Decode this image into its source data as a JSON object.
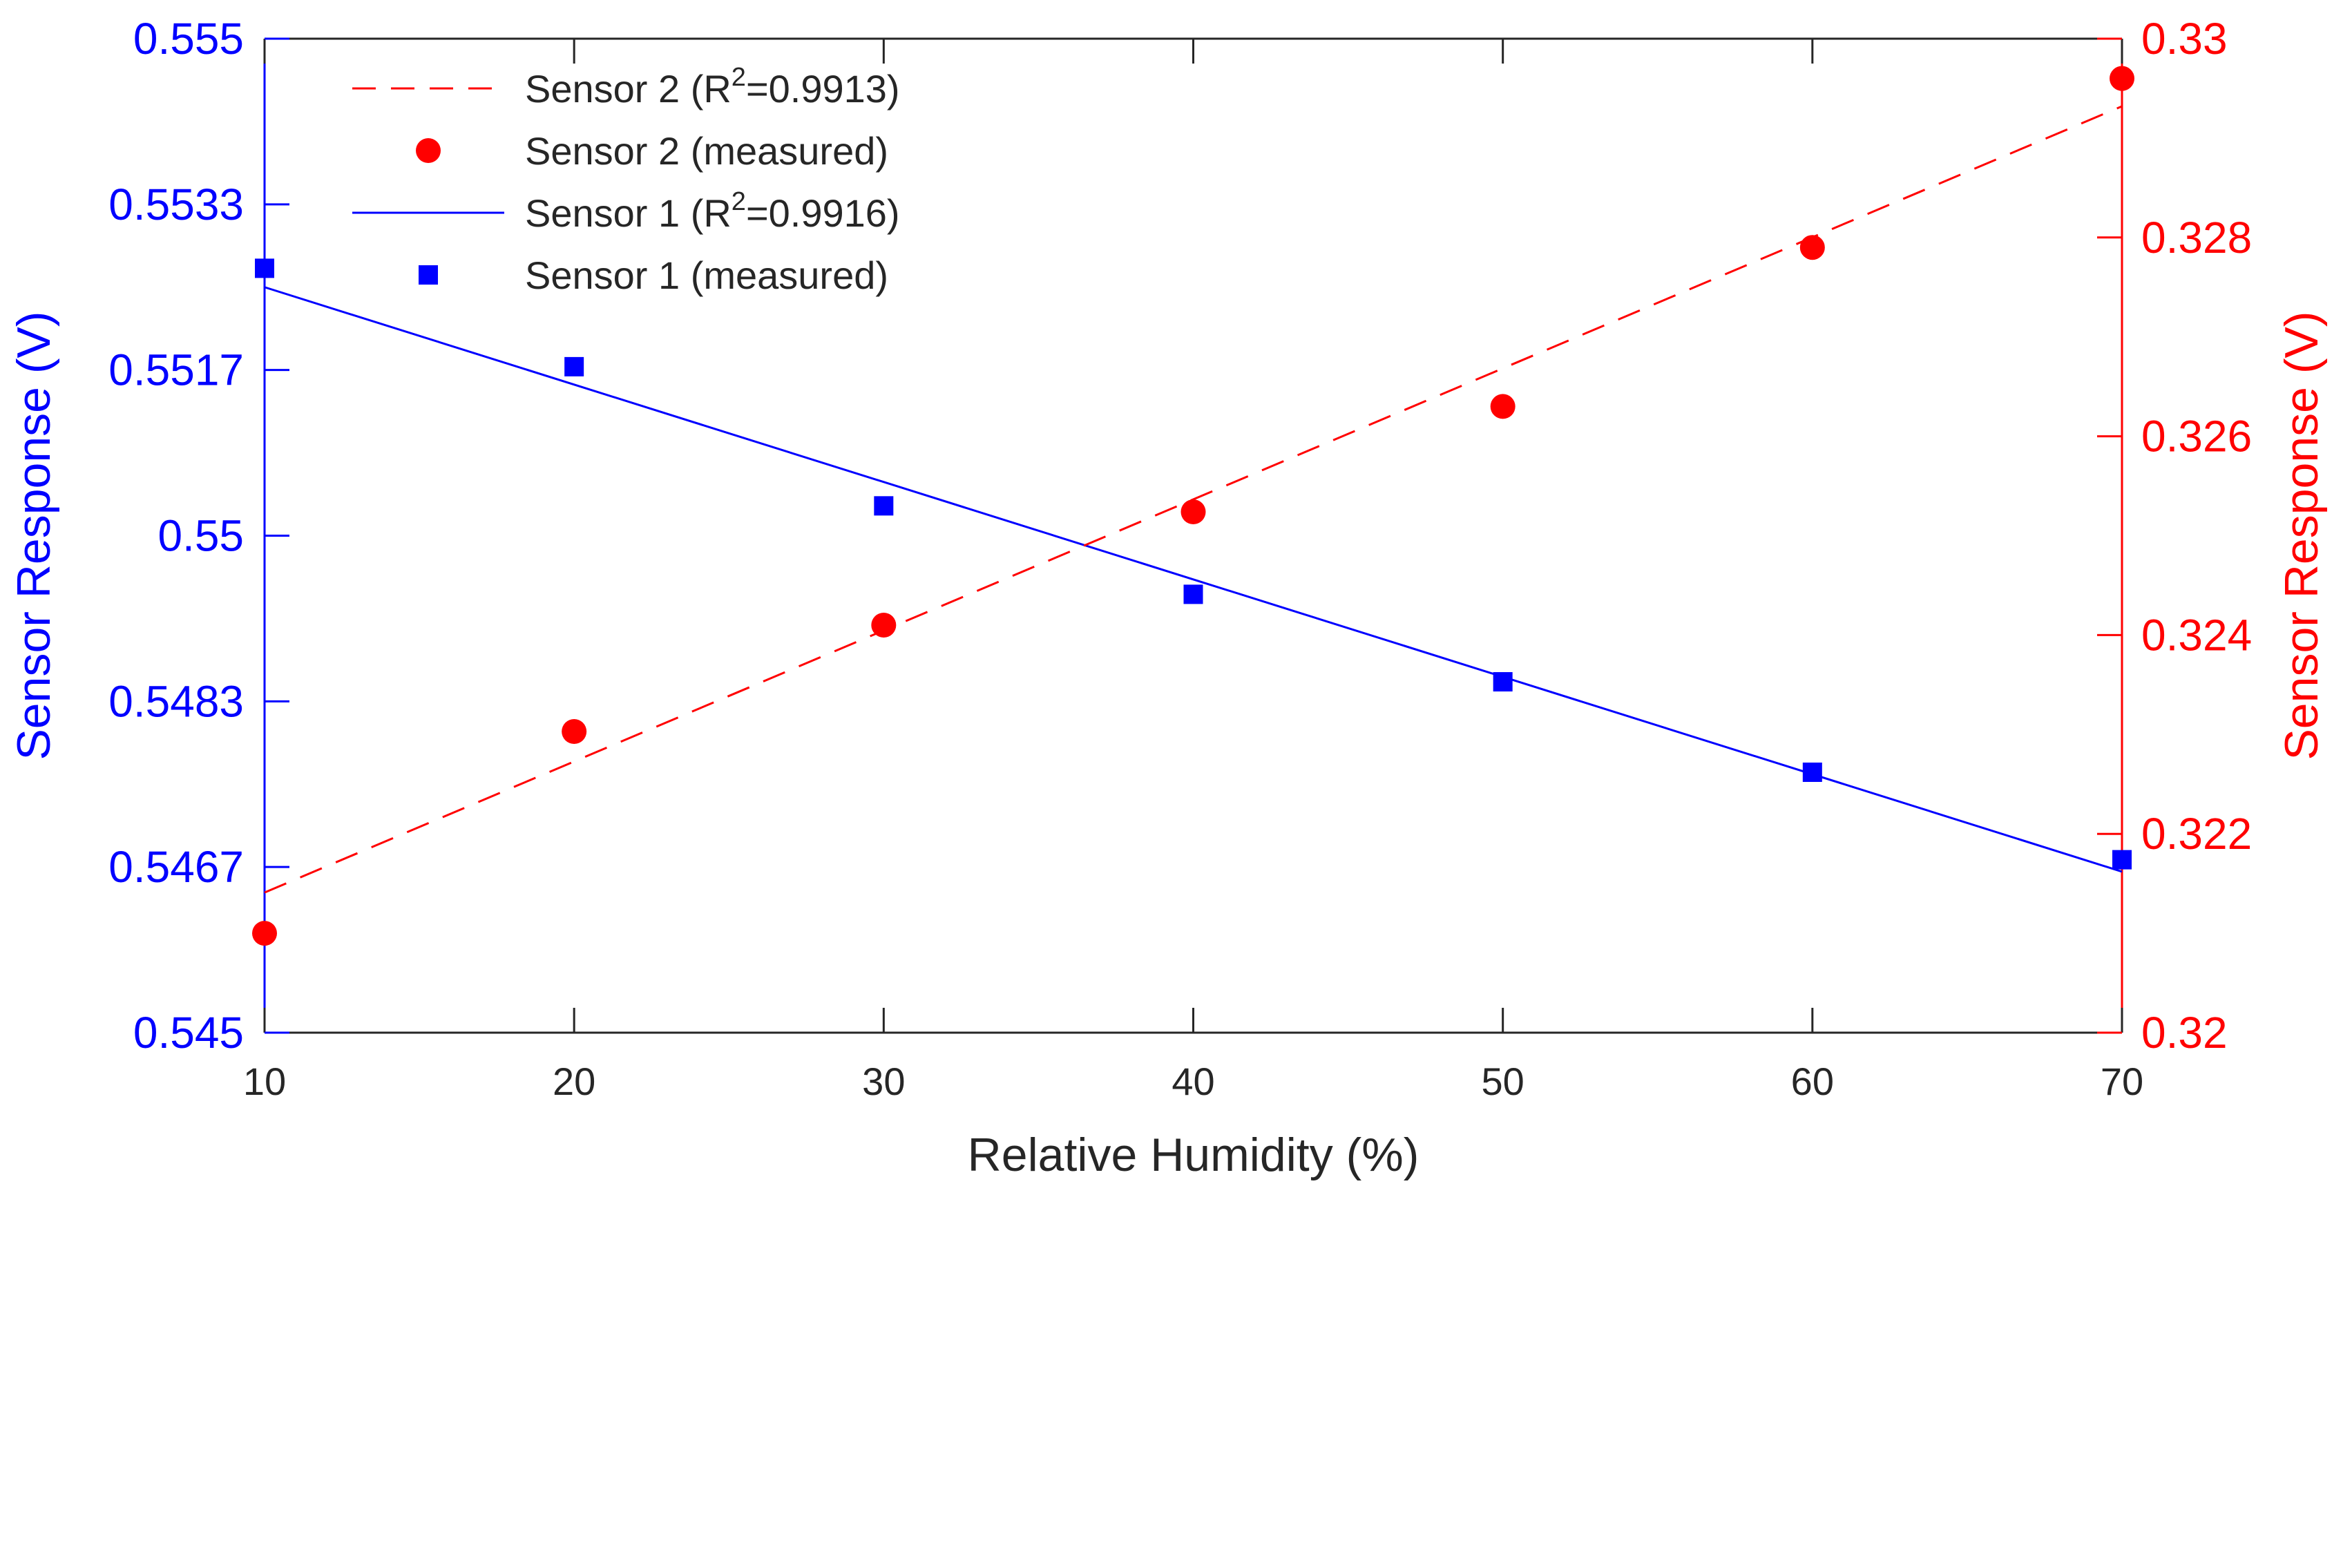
{
  "chart_data": {
    "type": "line",
    "xlabel": "Relative Humidity (%)",
    "ylabel_left": "Sensor Response (V)",
    "ylabel_right": "Sensor Response (V)",
    "xlim": [
      10,
      70
    ],
    "ylim_left": [
      0.545,
      0.555
    ],
    "ylim_right": [
      0.32,
      0.33
    ],
    "x_ticks": [
      10,
      20,
      30,
      40,
      50,
      60,
      70
    ],
    "x_tick_labels": [
      "10",
      "20",
      "30",
      "40",
      "50",
      "60",
      "70"
    ],
    "y_left_ticks": [
      0.545,
      0.546667,
      0.548333,
      0.55,
      0.551667,
      0.553333,
      0.555
    ],
    "y_left_tick_labels": [
      "0.545",
      "0.5467",
      "0.5483",
      "0.55",
      "0.5517",
      "0.5533",
      "0.555"
    ],
    "y_right_ticks": [
      0.32,
      0.322,
      0.324,
      0.326,
      0.328,
      0.33
    ],
    "y_right_tick_labels": [
      "0.32",
      "0.322",
      "0.324",
      "0.326",
      "0.328",
      "0.33"
    ],
    "grid": false,
    "legend_position": "top-left",
    "legend": [
      {
        "label_prefix": "Sensor 2 (R",
        "superscript": "2",
        "label_suffix": "=0.9913)",
        "style": "dashed-line",
        "color": "#ff0000"
      },
      {
        "label": "Sensor 2 (measured)",
        "style": "circle-marker",
        "color": "#ff0000"
      },
      {
        "label_prefix": "Sensor 1 (R",
        "superscript": "2",
        "label_suffix": "=0.9916)",
        "style": "solid-line",
        "color": "#0000ff"
      },
      {
        "label": "Sensor 1 (measured)",
        "style": "square-marker",
        "color": "#0000ff"
      }
    ],
    "series": [
      {
        "name": "Sensor 1 (measured)",
        "axis": "left",
        "marker": "square",
        "color": "#0000ff",
        "x": [
          10,
          20,
          30,
          40,
          50,
          60,
          70
        ],
        "y": [
          0.55269,
          0.5517,
          0.5503,
          0.54941,
          0.54853,
          0.54762,
          0.54674
        ]
      },
      {
        "name": "Sensor 1 (R2=0.9916)",
        "axis": "left",
        "line": "solid",
        "color": "#0000ff",
        "x": [
          10,
          70
        ],
        "y": [
          0.5525,
          0.54662
        ]
      },
      {
        "name": "Sensor 2 (measured)",
        "axis": "right",
        "marker": "circle",
        "color": "#ff0000",
        "x": [
          10,
          20,
          30,
          40,
          50,
          60,
          70
        ],
        "y": [
          0.321,
          0.32303,
          0.3241,
          0.32524,
          0.3263,
          0.3279,
          0.3296
        ]
      },
      {
        "name": "Sensor 2 (R2=0.9913)",
        "axis": "right",
        "line": "dashed",
        "color": "#ff0000",
        "x": [
          10,
          70
        ],
        "y": [
          0.32141,
          0.32932
        ]
      }
    ]
  },
  "colors": {
    "left_axis": "#0000ff",
    "right_axis": "#ff0000",
    "text": "#262626"
  }
}
